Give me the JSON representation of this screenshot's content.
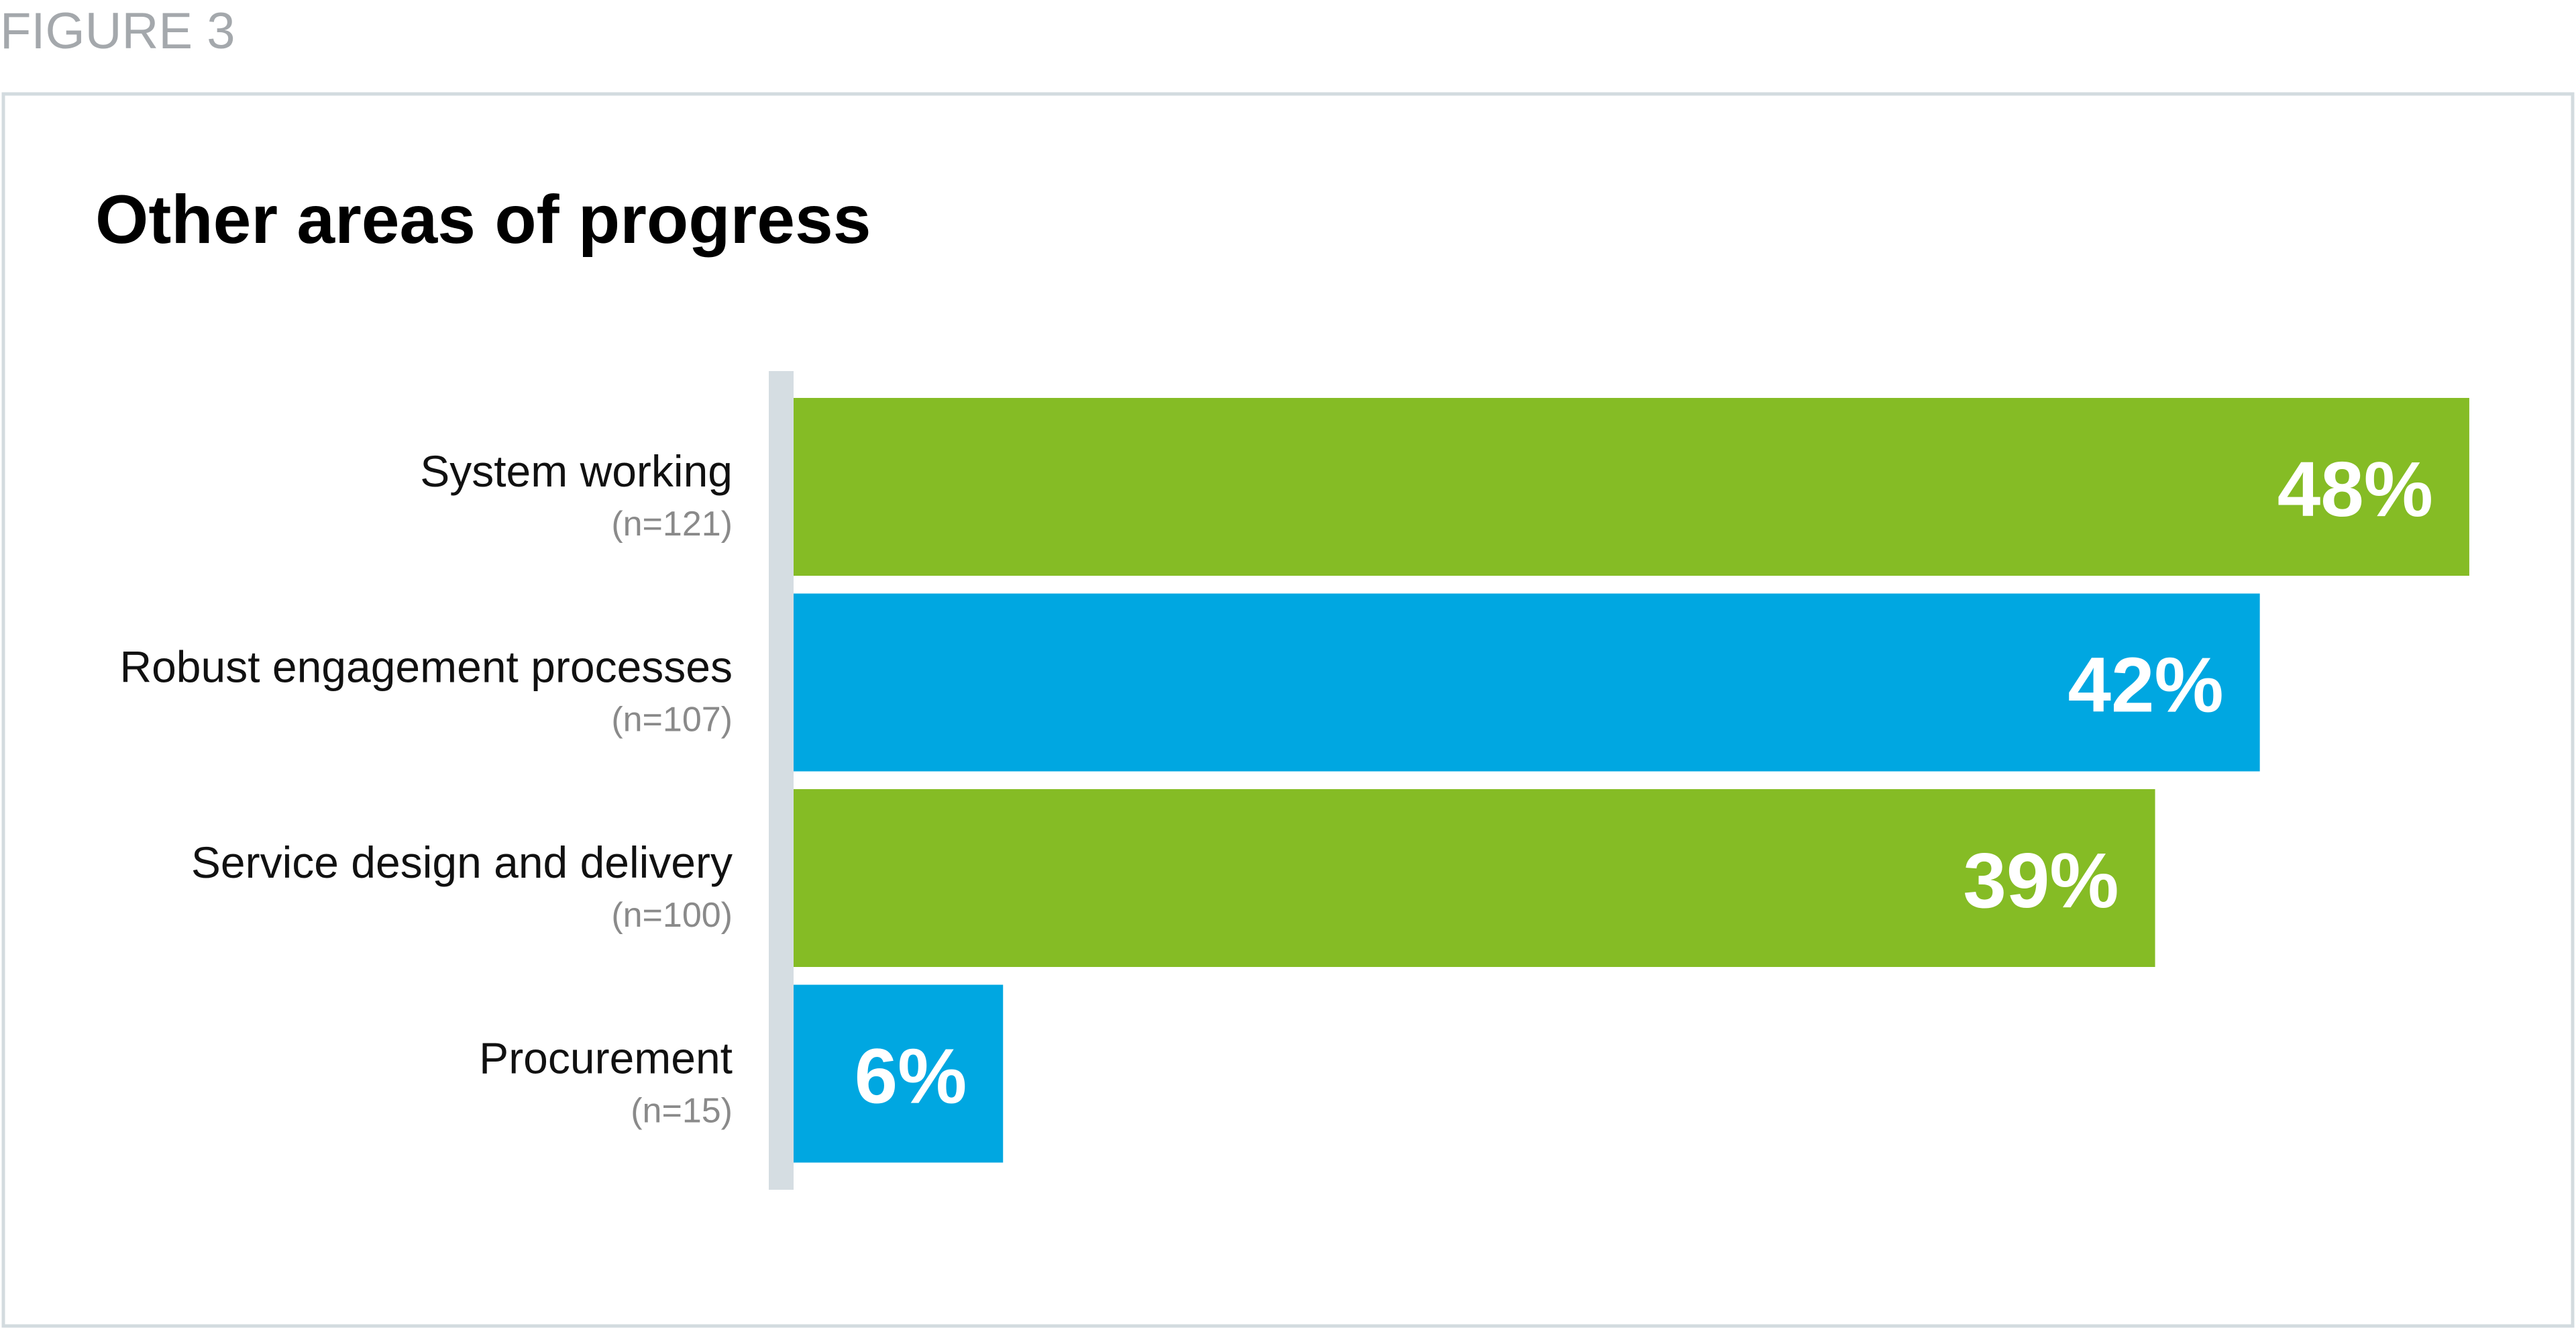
{
  "figure_label": "FIGURE 3",
  "chart_data": {
    "type": "hbar",
    "title": "Other areas of progress",
    "categories": [
      "System working",
      "Robust engagement processes",
      "Service design and delivery",
      "Procurement"
    ],
    "category_notes": [
      "(n=121)",
      "(n=107)",
      "(n=100)",
      "(n=15)"
    ],
    "values": [
      48,
      42,
      39,
      6
    ],
    "value_labels": [
      "48%",
      "42%",
      "39%",
      "6%"
    ],
    "colors": [
      "#85bc25",
      "#00a7e1",
      "#85bc25",
      "#00a7e1"
    ]
  }
}
